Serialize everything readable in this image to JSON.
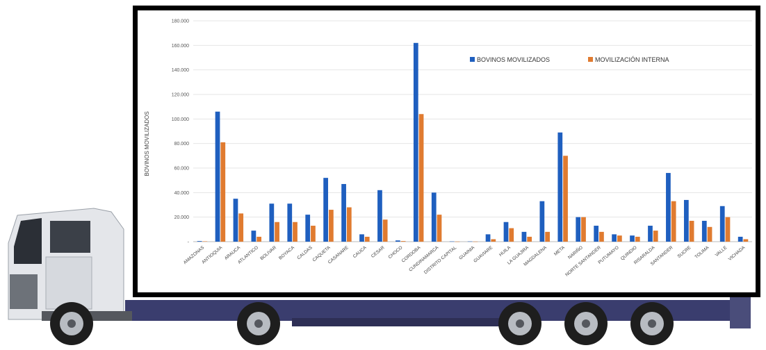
{
  "chart_data": {
    "type": "bar",
    "title": "",
    "xlabel": "",
    "ylabel": "BOVINOS MOVILIZADOS",
    "ylim": [
      0,
      180000
    ],
    "yticks": [
      "-",
      "20.000",
      "40.000",
      "60.000",
      "80.000",
      "100.000",
      "120.000",
      "140.000",
      "160.000",
      "180.000"
    ],
    "grid": true,
    "legend_position": "top-right",
    "categories": [
      "AMAZONAS",
      "ANTIOQUIA",
      "ARAUCA",
      "ATLANTICO",
      "BOLIVAR",
      "BOYACA",
      "CALDAS",
      "CAQUETA",
      "CASANARE",
      "CAUCA",
      "CESAR",
      "CHOCO",
      "CORDOBA",
      "CUNDINAMARCA",
      "DISTRITO CAPITAL",
      "GUAINIA",
      "GUAVIARE",
      "HUILA",
      "LA GUAJIRA",
      "MAGDALENA",
      "META",
      "NARIÑO",
      "NORTE SANTANDER",
      "PUTUMAYO",
      "QUINDIO",
      "RISARALDA",
      "SANTANDER",
      "SUCRE",
      "TOLIMA",
      "VALLE",
      "VICHADA"
    ],
    "series": [
      {
        "name": "BOVINOS MOVILIZADOS",
        "color": "#1f5fbf",
        "values": [
          500,
          106000,
          35000,
          9000,
          31000,
          31000,
          22000,
          52000,
          47000,
          6000,
          42000,
          1000,
          162000,
          40000,
          200,
          200,
          6000,
          16000,
          8000,
          33000,
          89000,
          20000,
          13000,
          6000,
          5000,
          13000,
          56000,
          34000,
          17000,
          29000,
          4000
        ]
      },
      {
        "name": "MOVILIZACIÓN INTERNA",
        "color": "#e07b30",
        "values": [
          300,
          81000,
          23000,
          4000,
          16000,
          16000,
          13000,
          26000,
          28000,
          4000,
          18000,
          500,
          104000,
          22000,
          100,
          100,
          2000,
          11000,
          4000,
          8000,
          70000,
          20000,
          8000,
          5000,
          4000,
          9000,
          33000,
          17000,
          12000,
          20000,
          2000
        ]
      }
    ]
  }
}
